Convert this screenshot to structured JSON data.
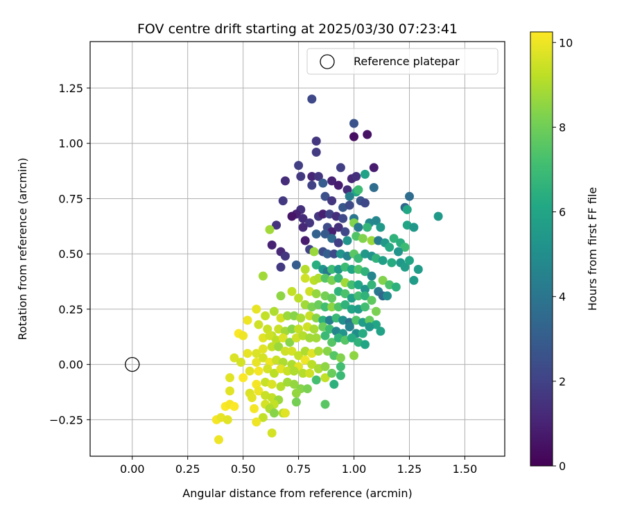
{
  "chart_data": {
    "type": "scatter",
    "title": "FOV centre drift starting at 2025/03/30 07:23:41",
    "xlabel": "Angular distance from reference (arcmin)",
    "ylabel": "Rotation from reference (arcmin)",
    "xlim": [
      -0.19,
      1.68
    ],
    "ylim": [
      -0.415,
      1.46
    ],
    "xticks": [
      0.0,
      0.25,
      0.5,
      0.75,
      1.0,
      1.25,
      1.5
    ],
    "xtick_labels": [
      "0.00",
      "0.25",
      "0.50",
      "0.75",
      "1.00",
      "1.25",
      "1.50"
    ],
    "yticks": [
      -0.25,
      0.0,
      0.25,
      0.5,
      0.75,
      1.0,
      1.25
    ],
    "ytick_labels": [
      "−0.25",
      "0.00",
      "0.25",
      "0.50",
      "0.75",
      "1.00",
      "1.25"
    ],
    "grid": true,
    "legend": {
      "placement": "top-right",
      "entries": [
        {
          "label": "Reference platepar",
          "marker": "open-circle"
        }
      ]
    },
    "reference_point": {
      "x": 0.0,
      "y": 0.0
    },
    "colorbar": {
      "label": "Hours from first FF file",
      "colormap": "viridis",
      "range": [
        0,
        10.25
      ],
      "ticks": [
        0,
        2,
        4,
        6,
        8,
        10
      ],
      "tick_labels": [
        "0",
        "2",
        "4",
        "6",
        "8",
        "10"
      ]
    },
    "points_note_hours": "third value of each point is hours from first FF file (color)",
    "points": [
      [
        0.81,
        1.2,
        2.2
      ],
      [
        1.0,
        1.09,
        2.6
      ],
      [
        1.06,
        1.04,
        0.5
      ],
      [
        1.0,
        1.03,
        0.4
      ],
      [
        0.83,
        1.01,
        1.6
      ],
      [
        0.83,
        0.96,
        1.8
      ],
      [
        0.75,
        0.9,
        1.9
      ],
      [
        0.94,
        0.89,
        1.9
      ],
      [
        1.09,
        0.89,
        0.8
      ],
      [
        0.81,
        0.85,
        1.1
      ],
      [
        0.76,
        0.85,
        1.7
      ],
      [
        0.69,
        0.83,
        1.3
      ],
      [
        0.84,
        0.85,
        1.6
      ],
      [
        0.99,
        0.84,
        1.2
      ],
      [
        1.01,
        0.85,
        1.4
      ],
      [
        1.05,
        0.86,
        5.9
      ],
      [
        0.86,
        0.82,
        3.0
      ],
      [
        0.9,
        0.83,
        1.0
      ],
      [
        0.93,
        0.81,
        0.8
      ],
      [
        0.81,
        0.81,
        2.0
      ],
      [
        0.97,
        0.79,
        1.3
      ],
      [
        1.01,
        0.78,
        6.1
      ],
      [
        1.02,
        0.79,
        7.0
      ],
      [
        1.09,
        0.8,
        3.6
      ],
      [
        0.68,
        0.74,
        1.7
      ],
      [
        0.87,
        0.76,
        2.5
      ],
      [
        0.9,
        0.74,
        1.6
      ],
      [
        0.98,
        0.76,
        4.4
      ],
      [
        1.03,
        0.74,
        2.6
      ],
      [
        0.76,
        0.7,
        1.4
      ],
      [
        0.74,
        0.68,
        1.0
      ],
      [
        0.72,
        0.67,
        0.6
      ],
      [
        0.95,
        0.71,
        2.8
      ],
      [
        1.05,
        0.73,
        2.2
      ],
      [
        0.98,
        0.72,
        2.3
      ],
      [
        1.23,
        0.71,
        3.4
      ],
      [
        1.25,
        0.76,
        3.6
      ],
      [
        1.24,
        0.7,
        6.1
      ],
      [
        1.38,
        0.67,
        5.5
      ],
      [
        0.77,
        0.66,
        1.3
      ],
      [
        0.8,
        0.64,
        1.6
      ],
      [
        0.84,
        0.67,
        1.6
      ],
      [
        0.86,
        0.68,
        0.9
      ],
      [
        0.89,
        0.68,
        2.0
      ],
      [
        0.92,
        0.67,
        1.4
      ],
      [
        0.95,
        0.66,
        2.2
      ],
      [
        1.0,
        0.66,
        4.0
      ],
      [
        1.0,
        0.64,
        8.3
      ],
      [
        1.07,
        0.64,
        4.8
      ],
      [
        1.1,
        0.65,
        4.7
      ],
      [
        0.65,
        0.63,
        1.5
      ],
      [
        0.77,
        0.62,
        1.2
      ],
      [
        0.88,
        0.62,
        2.3
      ],
      [
        0.9,
        0.6,
        0.9
      ],
      [
        0.93,
        0.62,
        1.4
      ],
      [
        0.96,
        0.6,
        2.2
      ],
      [
        1.02,
        0.62,
        4.2
      ],
      [
        1.06,
        0.62,
        6.7
      ],
      [
        1.12,
        0.62,
        5.5
      ],
      [
        1.24,
        0.63,
        6.0
      ],
      [
        1.27,
        0.62,
        5.4
      ],
      [
        0.83,
        0.59,
        3.2
      ],
      [
        0.87,
        0.59,
        2.9
      ],
      [
        0.9,
        0.57,
        3.5
      ],
      [
        0.93,
        0.55,
        1.9
      ],
      [
        0.97,
        0.56,
        5.3
      ],
      [
        1.01,
        0.58,
        7.4
      ],
      [
        1.04,
        0.57,
        8.3
      ],
      [
        1.08,
        0.56,
        8.7
      ],
      [
        1.11,
        0.56,
        4.2
      ],
      [
        1.14,
        0.55,
        5.5
      ],
      [
        1.18,
        0.57,
        6.6
      ],
      [
        1.21,
        0.55,
        6.4
      ],
      [
        1.23,
        0.53,
        7.0
      ],
      [
        1.2,
        0.51,
        5.3
      ],
      [
        1.16,
        0.53,
        6.2
      ],
      [
        0.63,
        0.54,
        1.0
      ],
      [
        0.67,
        0.51,
        1.2
      ],
      [
        0.69,
        0.49,
        1.6
      ],
      [
        0.78,
        0.56,
        0.8
      ],
      [
        0.8,
        0.52,
        2.0
      ],
      [
        0.86,
        0.51,
        2.4
      ],
      [
        0.88,
        0.5,
        3.1
      ],
      [
        0.91,
        0.5,
        2.3
      ],
      [
        0.94,
        0.5,
        5.3
      ],
      [
        0.97,
        0.49,
        4.5
      ],
      [
        1.0,
        0.5,
        7.6
      ],
      [
        1.02,
        0.48,
        6.8
      ],
      [
        1.05,
        0.5,
        5.5
      ],
      [
        1.08,
        0.49,
        5.2
      ],
      [
        1.1,
        0.48,
        6.6
      ],
      [
        1.13,
        0.47,
        5.8
      ],
      [
        1.17,
        0.46,
        6.3
      ],
      [
        1.21,
        0.46,
        5.5
      ],
      [
        1.23,
        0.44,
        5.7
      ],
      [
        1.25,
        0.47,
        6.0
      ],
      [
        1.29,
        0.43,
        5.6
      ],
      [
        0.62,
        0.61,
        8.8
      ],
      [
        0.82,
        0.51,
        8.7
      ],
      [
        0.67,
        0.44,
        1.7
      ],
      [
        0.74,
        0.45,
        3.0
      ],
      [
        0.78,
        0.43,
        9.1
      ],
      [
        0.83,
        0.45,
        6.4
      ],
      [
        0.86,
        0.43,
        5.3
      ],
      [
        0.88,
        0.42,
        4.2
      ],
      [
        0.9,
        0.43,
        7.0
      ],
      [
        0.93,
        0.43,
        5.4
      ],
      [
        0.96,
        0.44,
        7.0
      ],
      [
        0.99,
        0.43,
        6.0
      ],
      [
        1.02,
        0.43,
        7.4
      ],
      [
        1.05,
        0.42,
        6.6
      ],
      [
        1.08,
        0.4,
        4.7
      ],
      [
        1.13,
        0.38,
        8.3
      ],
      [
        1.16,
        0.36,
        7.3
      ],
      [
        1.19,
        0.35,
        6.5
      ],
      [
        1.27,
        0.38,
        5.6
      ],
      [
        0.59,
        0.4,
        8.8
      ],
      [
        0.78,
        0.39,
        9.5
      ],
      [
        0.82,
        0.38,
        9.2
      ],
      [
        0.84,
        0.39,
        9.0
      ],
      [
        0.87,
        0.39,
        7.5
      ],
      [
        0.9,
        0.38,
        8.2
      ],
      [
        0.93,
        0.39,
        6.8
      ],
      [
        0.96,
        0.37,
        8.8
      ],
      [
        0.99,
        0.36,
        7.1
      ],
      [
        1.02,
        0.36,
        6.1
      ],
      [
        1.05,
        0.34,
        5.2
      ],
      [
        1.08,
        0.36,
        6.7
      ],
      [
        1.11,
        0.33,
        4.1
      ],
      [
        1.13,
        0.31,
        3.5
      ],
      [
        1.15,
        0.31,
        5.0
      ],
      [
        0.8,
        0.33,
        9.5
      ],
      [
        0.83,
        0.32,
        8.6
      ],
      [
        0.87,
        0.31,
        8.1
      ],
      [
        0.9,
        0.3,
        7.8
      ],
      [
        0.93,
        0.33,
        6.6
      ],
      [
        0.96,
        0.32,
        7.3
      ],
      [
        0.99,
        0.3,
        5.8
      ],
      [
        1.02,
        0.31,
        7.1
      ],
      [
        1.05,
        0.31,
        6.6
      ],
      [
        1.08,
        0.29,
        7.7
      ],
      [
        0.67,
        0.31,
        8.5
      ],
      [
        0.72,
        0.33,
        9.3
      ],
      [
        0.75,
        0.3,
        9.2
      ],
      [
        0.78,
        0.27,
        8.8
      ],
      [
        0.81,
        0.26,
        8.2
      ],
      [
        0.84,
        0.27,
        7.9
      ],
      [
        0.87,
        0.26,
        7.1
      ],
      [
        0.9,
        0.26,
        8.5
      ],
      [
        0.93,
        0.26,
        7.4
      ],
      [
        0.96,
        0.27,
        6.6
      ],
      [
        0.99,
        0.25,
        6.0
      ],
      [
        1.02,
        0.25,
        5.6
      ],
      [
        1.05,
        0.26,
        7.1
      ],
      [
        1.1,
        0.24,
        8.2
      ],
      [
        0.56,
        0.25,
        9.9
      ],
      [
        0.6,
        0.22,
        9.3
      ],
      [
        0.64,
        0.24,
        9.0
      ],
      [
        0.67,
        0.21,
        9.6
      ],
      [
        0.7,
        0.22,
        8.7
      ],
      [
        0.73,
        0.22,
        8.4
      ],
      [
        0.76,
        0.21,
        8.9
      ],
      [
        0.8,
        0.22,
        9.4
      ],
      [
        0.83,
        0.21,
        8.4
      ],
      [
        0.86,
        0.2,
        6.5
      ],
      [
        0.89,
        0.2,
        4.4
      ],
      [
        0.92,
        0.21,
        6.9
      ],
      [
        0.95,
        0.2,
        5.1
      ],
      [
        0.98,
        0.19,
        3.9
      ],
      [
        1.01,
        0.2,
        7.4
      ],
      [
        1.04,
        0.19,
        5.7
      ],
      [
        1.07,
        0.2,
        7.8
      ],
      [
        1.1,
        0.18,
        6.0
      ],
      [
        1.12,
        0.15,
        5.9
      ],
      [
        0.52,
        0.2,
        10.0
      ],
      [
        0.57,
        0.18,
        9.5
      ],
      [
        0.61,
        0.16,
        9.4
      ],
      [
        0.63,
        0.13,
        9.2
      ],
      [
        0.66,
        0.16,
        9.4
      ],
      [
        0.69,
        0.15,
        8.8
      ],
      [
        0.72,
        0.16,
        8.4
      ],
      [
        0.75,
        0.16,
        9.3
      ],
      [
        0.79,
        0.17,
        9.5
      ],
      [
        0.82,
        0.16,
        8.9
      ],
      [
        0.86,
        0.17,
        7.9
      ],
      [
        0.89,
        0.16,
        7.0
      ],
      [
        0.92,
        0.15,
        4.6
      ],
      [
        0.95,
        0.14,
        5.3
      ],
      [
        0.98,
        0.17,
        4.5
      ],
      [
        1.01,
        0.14,
        5.0
      ],
      [
        1.04,
        0.14,
        6.3
      ],
      [
        1.07,
        0.17,
        5.4
      ],
      [
        0.48,
        0.14,
        10.2
      ],
      [
        0.5,
        0.13,
        10.0
      ],
      [
        0.59,
        0.12,
        9.8
      ],
      [
        0.62,
        0.13,
        9.5
      ],
      [
        0.65,
        0.11,
        9.2
      ],
      [
        0.68,
        0.12,
        9.7
      ],
      [
        0.71,
        0.1,
        8.4
      ],
      [
        0.74,
        0.12,
        9.5
      ],
      [
        0.77,
        0.13,
        9.1
      ],
      [
        0.8,
        0.12,
        8.8
      ],
      [
        0.83,
        0.12,
        8.8
      ],
      [
        0.87,
        0.13,
        6.9
      ],
      [
        0.9,
        0.1,
        7.5
      ],
      [
        0.93,
        0.12,
        6.6
      ],
      [
        0.96,
        0.11,
        7.5
      ],
      [
        0.99,
        0.12,
        6.3
      ],
      [
        1.02,
        0.1,
        6.6
      ],
      [
        1.05,
        0.09,
        6.0
      ],
      [
        0.56,
        0.05,
        9.7
      ],
      [
        0.59,
        0.07,
        9.8
      ],
      [
        0.63,
        0.08,
        9.3
      ],
      [
        0.66,
        0.08,
        8.7
      ],
      [
        0.69,
        0.06,
        9.5
      ],
      [
        0.72,
        0.06,
        9.6
      ],
      [
        0.75,
        0.04,
        9.3
      ],
      [
        0.78,
        0.06,
        9.0
      ],
      [
        0.81,
        0.05,
        9.8
      ],
      [
        0.84,
        0.06,
        8.9
      ],
      [
        0.88,
        0.06,
        8.4
      ],
      [
        0.91,
        0.04,
        7.5
      ],
      [
        0.94,
        0.03,
        8.3
      ],
      [
        1.0,
        0.04,
        8.5
      ],
      [
        0.46,
        0.03,
        9.7
      ],
      [
        0.49,
        0.01,
        9.6
      ],
      [
        0.52,
        0.05,
        9.9
      ],
      [
        0.56,
        0.01,
        9.9
      ],
      [
        0.59,
        0.03,
        9.6
      ],
      [
        0.62,
        0.01,
        10.0
      ],
      [
        0.65,
        0.02,
        9.4
      ],
      [
        0.68,
        0.01,
        9.0
      ],
      [
        0.72,
        0.0,
        9.0
      ],
      [
        0.75,
        -0.01,
        9.8
      ],
      [
        0.78,
        0.02,
        10.0
      ],
      [
        0.81,
        0.0,
        9.2
      ],
      [
        0.84,
        -0.02,
        8.9
      ],
      [
        0.87,
        -0.01,
        8.5
      ],
      [
        0.94,
        -0.01,
        7.1
      ],
      [
        0.53,
        -0.03,
        9.8
      ],
      [
        0.57,
        -0.03,
        10.1
      ],
      [
        0.61,
        -0.02,
        9.6
      ],
      [
        0.64,
        -0.04,
        9.2
      ],
      [
        0.67,
        -0.02,
        9.8
      ],
      [
        0.7,
        -0.03,
        9.4
      ],
      [
        0.73,
        -0.03,
        9.0
      ],
      [
        0.77,
        -0.04,
        9.1
      ],
      [
        0.8,
        -0.04,
        9.5
      ],
      [
        0.83,
        -0.07,
        7.2
      ],
      [
        0.87,
        -0.06,
        9.3
      ],
      [
        0.9,
        -0.04,
        7.9
      ],
      [
        0.94,
        -0.05,
        6.9
      ],
      [
        0.44,
        -0.06,
        9.8
      ],
      [
        0.5,
        -0.06,
        10.2
      ],
      [
        0.56,
        -0.09,
        10.1
      ],
      [
        0.6,
        -0.08,
        9.4
      ],
      [
        0.63,
        -0.09,
        9.7
      ],
      [
        0.67,
        -0.1,
        9.1
      ],
      [
        0.7,
        -0.08,
        8.8
      ],
      [
        0.73,
        -0.09,
        8.6
      ],
      [
        0.76,
        -0.11,
        8.4
      ],
      [
        0.79,
        -0.11,
        8.2
      ],
      [
        0.91,
        -0.09,
        6.5
      ],
      [
        0.44,
        -0.12,
        9.8
      ],
      [
        0.53,
        -0.13,
        9.7
      ],
      [
        0.57,
        -0.12,
        10.0
      ],
      [
        0.6,
        -0.14,
        9.4
      ],
      [
        0.63,
        -0.15,
        9.3
      ],
      [
        0.66,
        -0.16,
        8.7
      ],
      [
        0.74,
        -0.13,
        8.6
      ],
      [
        0.54,
        -0.15,
        9.8
      ],
      [
        0.6,
        -0.18,
        9.6
      ],
      [
        0.64,
        -0.18,
        9.3
      ],
      [
        0.74,
        -0.17,
        8.1
      ],
      [
        0.87,
        -0.18,
        7.6
      ],
      [
        0.42,
        -0.19,
        10.2
      ],
      [
        0.44,
        -0.18,
        10.1
      ],
      [
        0.46,
        -0.19,
        10.2
      ],
      [
        0.55,
        -0.2,
        10.1
      ],
      [
        0.62,
        -0.2,
        9.0
      ],
      [
        0.68,
        -0.22,
        9.1
      ],
      [
        0.69,
        -0.22,
        9.8
      ],
      [
        0.64,
        -0.22,
        8.4
      ],
      [
        0.59,
        -0.24,
        9.3
      ],
      [
        0.38,
        -0.25,
        10.1
      ],
      [
        0.4,
        -0.24,
        9.9
      ],
      [
        0.43,
        -0.25,
        9.8
      ],
      [
        0.56,
        -0.26,
        10.0
      ],
      [
        0.63,
        -0.31,
        9.6
      ],
      [
        0.39,
        -0.34,
        10.0
      ]
    ]
  }
}
